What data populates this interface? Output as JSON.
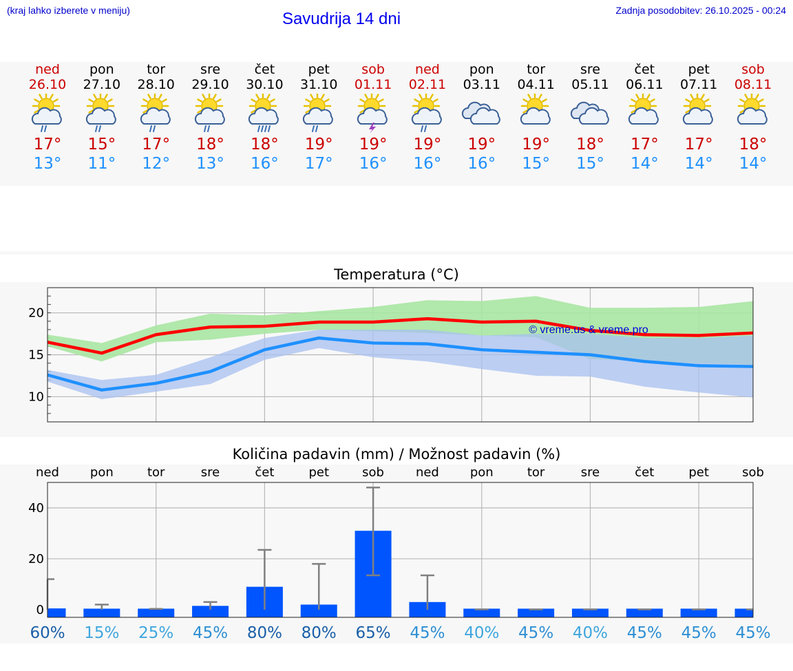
{
  "header": {
    "hint": "(kraj lahko izberete v meniju)",
    "title": "Savudrija 14 dni",
    "updated": "Zadnja posodobitev: 26.10.2025 - 00:24"
  },
  "colors": {
    "weekend": "#cc0000",
    "tmax": "#cc0000",
    "tmin": "#1e90ff",
    "max_line": "#ff0000",
    "min_line": "#1e90ff",
    "max_band": "#a9e6a2",
    "min_band": "#a8c0f0",
    "bar": "#0055ff",
    "whisker": "#808080"
  },
  "days": [
    {
      "name": "ned",
      "date": "26.10",
      "weekend": true,
      "icon": "sun-cloud-rain-icon",
      "tmax": "17°",
      "tmin": "13°",
      "prob": "60%"
    },
    {
      "name": "pon",
      "date": "27.10",
      "weekend": false,
      "icon": "sun-cloud-rain-icon",
      "tmax": "15°",
      "tmin": "11°",
      "prob": "15%"
    },
    {
      "name": "tor",
      "date": "28.10",
      "weekend": false,
      "icon": "sun-cloud-rain-icon",
      "tmax": "17°",
      "tmin": "12°",
      "prob": "25%"
    },
    {
      "name": "sre",
      "date": "29.10",
      "weekend": false,
      "icon": "sun-cloud-rain-icon",
      "tmax": "18°",
      "tmin": "13°",
      "prob": "45%"
    },
    {
      "name": "čet",
      "date": "30.10",
      "weekend": false,
      "icon": "sun-cloud-heavy-rain-icon",
      "tmax": "18°",
      "tmin": "16°",
      "prob": "80%"
    },
    {
      "name": "pet",
      "date": "31.10",
      "weekend": false,
      "icon": "sun-cloud-rain-icon",
      "tmax": "19°",
      "tmin": "17°",
      "prob": "80%"
    },
    {
      "name": "sob",
      "date": "01.11",
      "weekend": true,
      "icon": "sun-thunder-icon",
      "tmax": "19°",
      "tmin": "16°",
      "prob": "65%"
    },
    {
      "name": "ned",
      "date": "02.11",
      "weekend": true,
      "icon": "sun-cloud-rain-icon",
      "tmax": "19°",
      "tmin": "16°",
      "prob": "45%"
    },
    {
      "name": "pon",
      "date": "03.11",
      "weekend": false,
      "icon": "cloudy-icon",
      "tmax": "19°",
      "tmin": "16°",
      "prob": "40%"
    },
    {
      "name": "tor",
      "date": "04.11",
      "weekend": false,
      "icon": "sun-cloud-icon",
      "tmax": "19°",
      "tmin": "15°",
      "prob": "45%"
    },
    {
      "name": "sre",
      "date": "05.11",
      "weekend": false,
      "icon": "cloudy-icon",
      "tmax": "18°",
      "tmin": "15°",
      "prob": "40%"
    },
    {
      "name": "čet",
      "date": "06.11",
      "weekend": false,
      "icon": "sun-cloud-icon",
      "tmax": "17°",
      "tmin": "14°",
      "prob": "45%"
    },
    {
      "name": "pet",
      "date": "07.11",
      "weekend": false,
      "icon": "sun-cloud-icon",
      "tmax": "17°",
      "tmin": "14°",
      "prob": "45%"
    },
    {
      "name": "sob",
      "date": "08.11",
      "weekend": true,
      "icon": "sun-cloud-icon",
      "tmax": "18°",
      "tmin": "14°",
      "prob": "45%"
    }
  ],
  "chart_data": [
    {
      "type": "line",
      "title": "Temperatura (°C)",
      "watermark": "© vreme.us & vreme.pro",
      "categories": [
        "ned",
        "pon",
        "tor",
        "sre",
        "čet",
        "pet",
        "sob",
        "ned",
        "pon",
        "tor",
        "sre",
        "čet",
        "pet",
        "sob"
      ],
      "ylim": [
        7,
        23
      ],
      "yticks": [
        10,
        15,
        20
      ],
      "grid": true,
      "series": [
        {
          "name": "max",
          "values": [
            16.5,
            15.2,
            17.4,
            18.3,
            18.4,
            18.9,
            18.9,
            19.3,
            18.9,
            19.0,
            17.9,
            17.4,
            17.3,
            17.6
          ]
        },
        {
          "name": "min",
          "values": [
            12.6,
            10.8,
            11.6,
            13.0,
            15.6,
            17.0,
            16.4,
            16.3,
            15.6,
            15.3,
            15.0,
            14.2,
            13.7,
            13.6
          ]
        }
      ],
      "bands": [
        {
          "name": "max_range",
          "low": [
            16.0,
            14.2,
            16.5,
            16.8,
            17.5,
            18.0,
            17.8,
            17.6,
            17.3,
            17.1,
            14.5,
            14.2,
            14.0,
            13.8
          ],
          "high": [
            17.4,
            16.4,
            18.5,
            19.9,
            19.7,
            20.2,
            20.7,
            21.5,
            21.4,
            22.0,
            20.6,
            20.6,
            20.7,
            21.4
          ]
        },
        {
          "name": "min_range",
          "low": [
            11.8,
            9.7,
            10.6,
            11.5,
            14.4,
            15.8,
            14.7,
            14.2,
            13.3,
            12.5,
            12.4,
            11.2,
            10.5,
            9.9
          ],
          "high": [
            13.2,
            12.0,
            12.6,
            14.7,
            17.0,
            18.0,
            18.0,
            18.0,
            17.3,
            17.5,
            17.5,
            17.0,
            17.0,
            17.3
          ]
        }
      ]
    },
    {
      "type": "bar",
      "title": "Količina padavin (mm) / Možnost padavin (%)",
      "categories": [
        "ned",
        "pon",
        "tor",
        "sre",
        "čet",
        "pet",
        "sob",
        "ned",
        "pon",
        "tor",
        "sre",
        "čet",
        "pet",
        "sob"
      ],
      "ylim": [
        -3,
        50
      ],
      "yticks": [
        0,
        20,
        40
      ],
      "grid": true,
      "values": [
        0.5,
        0.3,
        0.0,
        1.5,
        9.0,
        2.0,
        31.0,
        3.0,
        0.0,
        0.0,
        0.0,
        0.0,
        0.0,
        0.0
      ],
      "error_high": [
        12.0,
        2.0,
        0.3,
        3.0,
        23.5,
        18.0,
        48.0,
        13.5,
        0.1,
        0.1,
        0.1,
        0.1,
        0.1,
        0.1
      ],
      "error_low": [
        0.0,
        0.0,
        0.0,
        0.0,
        0.0,
        0.0,
        13.5,
        0.0,
        0.0,
        0.0,
        0.0,
        0.0,
        0.0,
        0.0
      ],
      "probabilities": [
        "60%",
        "15%",
        "25%",
        "45%",
        "80%",
        "80%",
        "65%",
        "45%",
        "40%",
        "45%",
        "40%",
        "45%",
        "45%",
        "45%"
      ]
    }
  ]
}
